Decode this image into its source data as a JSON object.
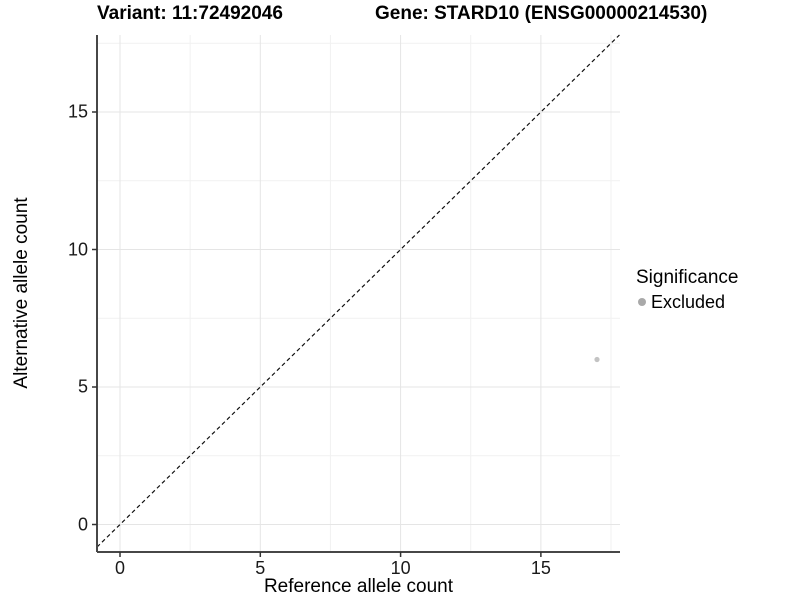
{
  "chart_data": {
    "type": "scatter",
    "titles": {
      "variant": "Variant: 11:72492046",
      "gene": "Gene: STARD10 (ENSG00000214530)"
    },
    "xlabel": "Reference allele count",
    "ylabel": "Alternative allele count",
    "xlim": [
      -0.82,
      17.82
    ],
    "ylim": [
      -1.0,
      17.8
    ],
    "x_ticks": [
      0,
      5,
      10,
      15
    ],
    "y_ticks": [
      0,
      5,
      10,
      15
    ],
    "minor_grid_interval": 2.5,
    "grid": true,
    "reference_line": {
      "type": "identity",
      "slope": 1,
      "intercept": 0,
      "style": "dashed",
      "color": "#111111"
    },
    "series": [
      {
        "name": "Excluded",
        "color": "#c3c3c3",
        "points": [
          {
            "x": 17,
            "y": 6
          }
        ]
      }
    ],
    "legend": {
      "title": "Significance",
      "position": "right",
      "entries": [
        {
          "label": "Excluded",
          "color": "#a9a9a9"
        }
      ]
    },
    "colors": {
      "grid_major": "#e5e5e5",
      "grid_minor": "#f1f1f1",
      "axis_line": "#474747",
      "tick_mark": "#333333",
      "text": "#000000"
    }
  }
}
